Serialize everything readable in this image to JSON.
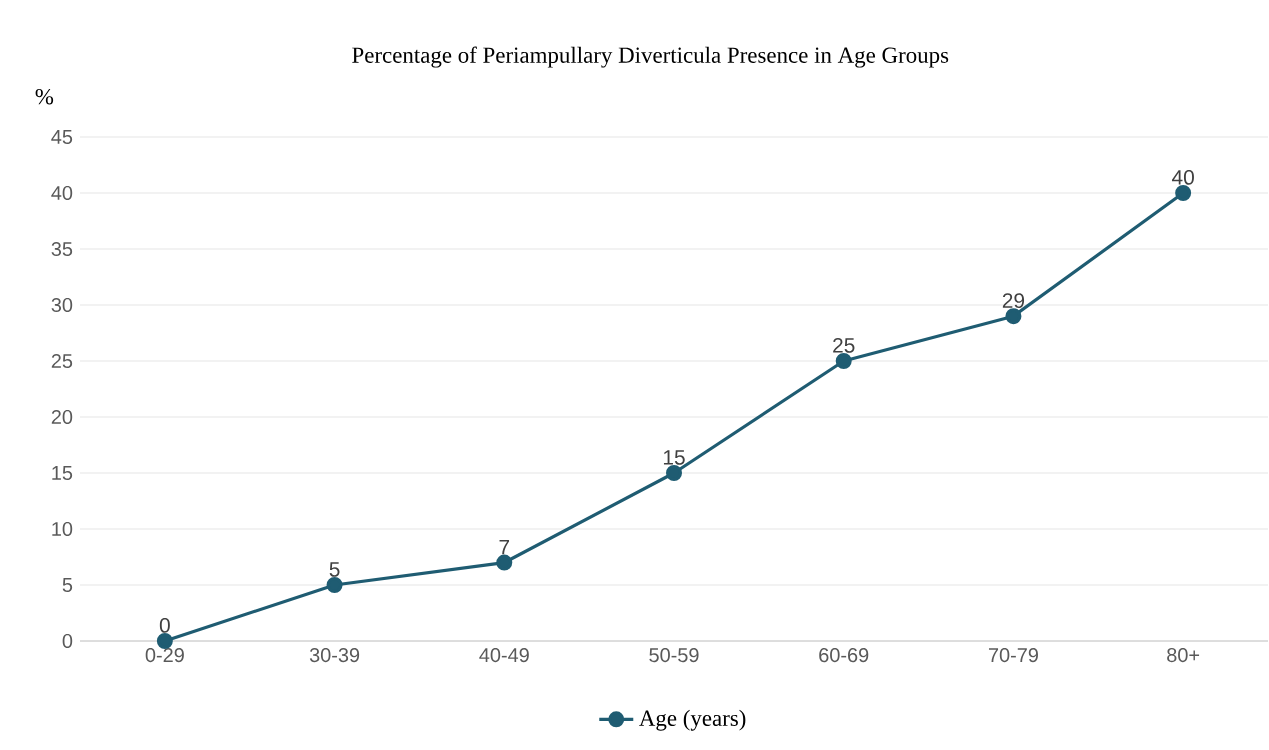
{
  "chart_data": {
    "type": "line",
    "title": "Percentage of Periampullary Diverticula Presence in Age Groups",
    "ylabel": "%",
    "categories": [
      "0-29",
      "30-39",
      "40-49",
      "50-59",
      "60-69",
      "70-79",
      "80+"
    ],
    "series": [
      {
        "name": "Age (years)",
        "color": "#1f5c72",
        "values": [
          0,
          5,
          7,
          15,
          25,
          29,
          40
        ]
      }
    ],
    "ylim": [
      0,
      45
    ],
    "yticks": [
      0,
      5,
      10,
      15,
      20,
      25,
      30,
      35,
      40,
      45
    ],
    "grid": "y",
    "legend": "bottom",
    "marker": "circle",
    "data_labels": true
  }
}
